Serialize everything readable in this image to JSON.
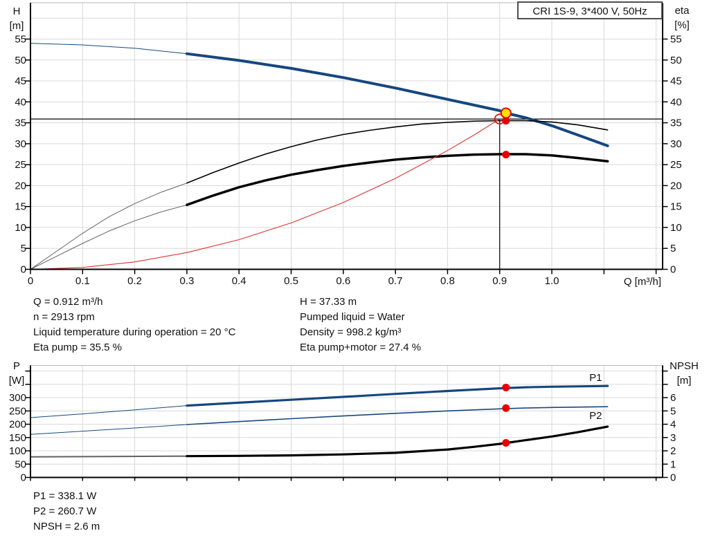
{
  "title_box": {
    "text": "CRI 1S-9, 3*400 V, 50Hz"
  },
  "top_info": {
    "left": [
      "Q = 0.912 m³/h",
      "n = 2913 rpm",
      "Liquid temperature during operation = 20 °C",
      "Eta pump = 35.5 %"
    ],
    "right": [
      "H = 37.33 m",
      "Pumped liquid = Water",
      "Density = 998.2 kg/m³",
      "Eta pump+motor = 27.4 %"
    ]
  },
  "bottom_info": [
    "P1 = 338.1 W",
    "P2 = 260.7 W",
    "NPSH = 2.6 m"
  ],
  "colors": {
    "curve_blue": "#15477f",
    "curve_black": "#000000",
    "curve_gray": "#606060",
    "curve_red": "#e03030",
    "dot_red": "#e80000",
    "dot_yellow": "#ffe000",
    "grid": "#d9d9d9",
    "axis": "#000000",
    "plot_top_border": "#b8b8b8",
    "label_blue": "#15477f"
  },
  "chart_data": [
    {
      "type": "line",
      "title": "CRI 1S-9, 3*400 V, 50Hz",
      "xlabel": "Q [m³/h]",
      "left_axis": {
        "lines": [
          "H",
          "[m]"
        ],
        "min": 0,
        "max": 55,
        "step": 5,
        "grid_max": 60
      },
      "right_axis": {
        "lines": [
          "eta",
          "[%]"
        ],
        "min": 0,
        "max": 55,
        "step": 5
      },
      "x_axis": {
        "min": 0,
        "label_max": 1.0,
        "tick_max": 1.2,
        "step": 0.1
      },
      "crosshair": {
        "q": 0.9,
        "h": 35.9
      },
      "series": [
        {
          "name": "qh-extension",
          "color": "blue",
          "width": 1,
          "points": [
            [
              0,
              54.0
            ],
            [
              0.1,
              53.6
            ],
            [
              0.2,
              52.8
            ],
            [
              0.3,
              51.5
            ]
          ]
        },
        {
          "name": "qh-curve",
          "color": "blue",
          "width": 4,
          "points": [
            [
              0.3,
              51.5
            ],
            [
              0.4,
              49.9
            ],
            [
              0.5,
              48.0
            ],
            [
              0.6,
              45.8
            ],
            [
              0.7,
              43.3
            ],
            [
              0.8,
              40.6
            ],
            [
              0.9,
              37.9
            ],
            [
              0.912,
              37.33
            ],
            [
              0.95,
              36.2
            ],
            [
              1.0,
              34.3
            ],
            [
              1.05,
              32.1
            ],
            [
              1.107,
              29.5
            ]
          ]
        },
        {
          "name": "eta-pump-extension",
          "color": "gray",
          "width": 1,
          "points": [
            [
              0,
              0
            ],
            [
              0.05,
              4.3
            ],
            [
              0.1,
              8.6
            ],
            [
              0.15,
              12.5
            ],
            [
              0.2,
              15.7
            ],
            [
              0.25,
              18.4
            ],
            [
              0.3,
              20.6
            ]
          ]
        },
        {
          "name": "eta-pump-curve",
          "color": "black",
          "width": 1.6,
          "points": [
            [
              0.3,
              20.6
            ],
            [
              0.35,
              23.1
            ],
            [
              0.4,
              25.4
            ],
            [
              0.45,
              27.5
            ],
            [
              0.5,
              29.3
            ],
            [
              0.55,
              30.9
            ],
            [
              0.6,
              32.2
            ],
            [
              0.65,
              33.2
            ],
            [
              0.7,
              34.0
            ],
            [
              0.75,
              34.7
            ],
            [
              0.8,
              35.1
            ],
            [
              0.85,
              35.4
            ],
            [
              0.9,
              35.5
            ],
            [
              0.95,
              35.5
            ],
            [
              1.0,
              35.2
            ],
            [
              1.05,
              34.5
            ],
            [
              1.107,
              33.3
            ]
          ]
        },
        {
          "name": "eta-pump-motor-extension",
          "color": "gray",
          "width": 1,
          "points": [
            [
              0,
              0
            ],
            [
              0.05,
              3.1
            ],
            [
              0.1,
              6.2
            ],
            [
              0.15,
              9.1
            ],
            [
              0.2,
              11.6
            ],
            [
              0.25,
              13.7
            ],
            [
              0.3,
              15.4
            ]
          ]
        },
        {
          "name": "eta-pump-motor-curve",
          "color": "black",
          "width": 3.5,
          "points": [
            [
              0.3,
              15.4
            ],
            [
              0.35,
              17.6
            ],
            [
              0.4,
              19.6
            ],
            [
              0.45,
              21.2
            ],
            [
              0.5,
              22.6
            ],
            [
              0.55,
              23.7
            ],
            [
              0.6,
              24.7
            ],
            [
              0.65,
              25.5
            ],
            [
              0.7,
              26.2
            ],
            [
              0.75,
              26.7
            ],
            [
              0.8,
              27.1
            ],
            [
              0.85,
              27.4
            ],
            [
              0.9,
              27.5
            ],
            [
              0.95,
              27.5
            ],
            [
              1.0,
              27.2
            ],
            [
              1.05,
              26.6
            ],
            [
              1.107,
              25.8
            ]
          ]
        },
        {
          "name": "system-curve",
          "color": "red",
          "width": 1.1,
          "points": [
            [
              0,
              0
            ],
            [
              0.1,
              0.44
            ],
            [
              0.2,
              1.77
            ],
            [
              0.3,
              3.99
            ],
            [
              0.4,
              7.09
            ],
            [
              0.5,
              11.08
            ],
            [
              0.6,
              15.95
            ],
            [
              0.7,
              21.72
            ],
            [
              0.8,
              28.37
            ],
            [
              0.85,
              32.02
            ],
            [
              0.9,
              35.9
            ]
          ]
        }
      ],
      "markers": [
        {
          "name": "requested-duty-point",
          "q": 0.9,
          "v": 35.9,
          "style": "hollow"
        },
        {
          "name": "eta-pump-duty-point",
          "q": 0.912,
          "v": 35.5,
          "style": "red"
        },
        {
          "name": "eta-pump-motor-duty-point",
          "q": 0.912,
          "v": 27.4,
          "style": "red"
        },
        {
          "name": "duty-point",
          "q": 0.912,
          "v": 37.33,
          "style": "yellow"
        }
      ]
    },
    {
      "type": "line",
      "xlabel": "",
      "left_axis": {
        "lines": [
          "P",
          "[W]"
        ],
        "min": 0,
        "max": 300,
        "step": 50,
        "tick_max": 400
      },
      "right_axis": {
        "lines": [
          "NPSH",
          "[m]"
        ],
        "min": 0,
        "max": 6,
        "step": 1,
        "tick_max": 8
      },
      "x_axis": {
        "min": 0,
        "tick_max": 1.2,
        "step": 0.1
      },
      "series": [
        {
          "name": "p1-extension",
          "color": "blue",
          "width": 1,
          "axis": "left",
          "points": [
            [
              0,
              225
            ],
            [
              0.1,
              239
            ],
            [
              0.2,
              254
            ],
            [
              0.3,
              270
            ]
          ]
        },
        {
          "name": "p1-curve",
          "color": "blue",
          "width": 3.2,
          "axis": "left",
          "points": [
            [
              0.3,
              270
            ],
            [
              0.4,
              281
            ],
            [
              0.5,
              292
            ],
            [
              0.6,
              303
            ],
            [
              0.7,
              314
            ],
            [
              0.8,
              325
            ],
            [
              0.9,
              335
            ],
            [
              0.95,
              339
            ],
            [
              1.0,
              341
            ],
            [
              1.05,
              342.5
            ],
            [
              1.107,
              344
            ]
          ]
        },
        {
          "name": "p2-extension",
          "color": "blue",
          "width": 1,
          "axis": "left",
          "points": [
            [
              0,
              162
            ],
            [
              0.1,
              174
            ],
            [
              0.2,
              186
            ],
            [
              0.3,
              199
            ]
          ]
        },
        {
          "name": "p2-curve",
          "color": "blue",
          "width": 1.6,
          "axis": "left",
          "points": [
            [
              0.3,
              199
            ],
            [
              0.4,
              210
            ],
            [
              0.5,
              221
            ],
            [
              0.6,
              231
            ],
            [
              0.7,
              241
            ],
            [
              0.8,
              250
            ],
            [
              0.9,
              258
            ],
            [
              0.95,
              261
            ],
            [
              1.0,
              263
            ],
            [
              1.107,
              266
            ]
          ]
        },
        {
          "name": "npsh-extension",
          "color": "gray",
          "width": 2,
          "axis": "right",
          "points": [
            [
              0,
              1.55
            ],
            [
              0.15,
              1.57
            ],
            [
              0.3,
              1.6
            ]
          ]
        },
        {
          "name": "npsh-curve",
          "color": "black",
          "width": 3.2,
          "axis": "right",
          "points": [
            [
              0.3,
              1.6
            ],
            [
              0.4,
              1.62
            ],
            [
              0.5,
              1.66
            ],
            [
              0.6,
              1.73
            ],
            [
              0.7,
              1.85
            ],
            [
              0.8,
              2.1
            ],
            [
              0.85,
              2.3
            ],
            [
              0.9,
              2.52
            ],
            [
              0.95,
              2.8
            ],
            [
              1.0,
              3.08
            ],
            [
              1.05,
              3.4
            ],
            [
              1.107,
              3.82
            ]
          ]
        }
      ],
      "markers": [
        {
          "name": "p1-duty-point",
          "q": 0.912,
          "v": 338.1,
          "axis": "left",
          "style": "red"
        },
        {
          "name": "p2-duty-point",
          "q": 0.912,
          "v": 260.7,
          "axis": "left",
          "style": "red"
        },
        {
          "name": "npsh-duty-point",
          "q": 0.912,
          "v": 2.6,
          "axis": "right",
          "style": "red"
        }
      ],
      "curve_labels": [
        {
          "text": "P1",
          "q": 1.084,
          "v": 376,
          "axis": "left"
        },
        {
          "text": "P2",
          "q": 1.084,
          "v": 233,
          "axis": "left"
        }
      ]
    }
  ]
}
